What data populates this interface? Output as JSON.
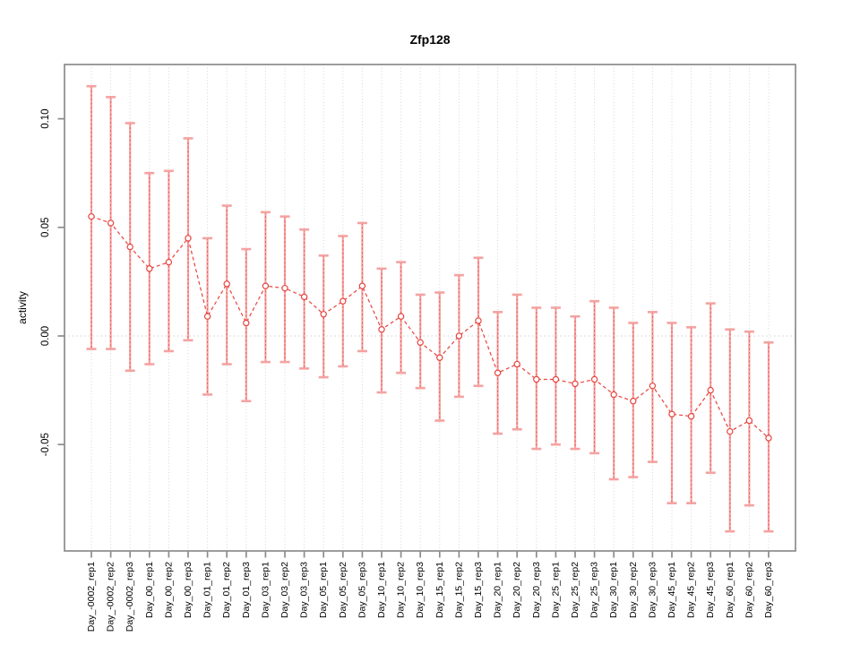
{
  "chart_data": {
    "type": "line",
    "title": "Zfp128",
    "ylabel": "activity",
    "xlabel": "",
    "legend": "none",
    "grid": "vertical-dotted",
    "zero_line": true,
    "ylim": [
      -0.099,
      0.125
    ],
    "yticks": [
      -0.05,
      0.0,
      0.05,
      0.1
    ],
    "ytick_labels": [
      "-0.05",
      "0.00",
      "0.05",
      "0.10"
    ],
    "categories": [
      "Day_-0002_rep1",
      "Day_-0002_rep2",
      "Day_-0002_rep3",
      "Day_00_rep1",
      "Day_00_rep2",
      "Day_00_rep3",
      "Day_01_rep1",
      "Day_01_rep2",
      "Day_01_rep3",
      "Day_03_rep1",
      "Day_03_rep2",
      "Day_03_rep3",
      "Day_05_rep1",
      "Day_05_rep2",
      "Day_05_rep3",
      "Day_10_rep1",
      "Day_10_rep2",
      "Day_10_rep3",
      "Day_15_rep1",
      "Day_15_rep2",
      "Day_15_rep3",
      "Day_20_rep1",
      "Day_20_rep2",
      "Day_20_rep3",
      "Day_25_rep1",
      "Day_25_rep2",
      "Day_25_rep3",
      "Day_30_rep1",
      "Day_30_rep2",
      "Day_30_rep3",
      "Day_45_rep1",
      "Day_45_rep2",
      "Day_45_rep3",
      "Day_60_rep1",
      "Day_60_rep2",
      "Day_60_rep3"
    ],
    "values": [
      0.055,
      0.052,
      0.041,
      0.031,
      0.034,
      0.045,
      0.009,
      0.024,
      0.006,
      0.023,
      0.022,
      0.018,
      0.01,
      0.016,
      0.023,
      0.003,
      0.009,
      -0.003,
      -0.01,
      0.0,
      0.007,
      -0.017,
      -0.013,
      -0.02,
      -0.02,
      -0.022,
      -0.02,
      -0.027,
      -0.03,
      -0.023,
      -0.036,
      -0.037,
      -0.025,
      -0.044,
      -0.039,
      -0.047
    ],
    "err_lo": [
      -0.006,
      -0.006,
      -0.016,
      -0.013,
      -0.007,
      -0.002,
      -0.027,
      -0.013,
      -0.03,
      -0.012,
      -0.012,
      -0.015,
      -0.019,
      -0.014,
      -0.007,
      -0.026,
      -0.017,
      -0.024,
      -0.039,
      -0.028,
      -0.023,
      -0.045,
      -0.043,
      -0.052,
      -0.05,
      -0.052,
      -0.054,
      -0.066,
      -0.065,
      -0.058,
      -0.077,
      -0.077,
      -0.063,
      -0.09,
      -0.078,
      -0.09
    ],
    "err_hi": [
      0.115,
      0.11,
      0.098,
      0.075,
      0.076,
      0.091,
      0.045,
      0.06,
      0.04,
      0.057,
      0.055,
      0.049,
      0.037,
      0.046,
      0.052,
      0.031,
      0.034,
      0.019,
      0.02,
      0.028,
      0.036,
      0.011,
      0.019,
      0.013,
      0.013,
      0.009,
      0.016,
      0.013,
      0.006,
      0.011,
      0.006,
      0.004,
      0.015,
      0.003,
      0.002,
      -0.003
    ],
    "colors": {
      "series": "#e8433e",
      "error_bar": "#f4a3a1",
      "grid": "#d6d6d6",
      "zero_line": "#dadada",
      "frame": "#8c8c8c",
      "text": "#000000",
      "background": "#ffffff"
    }
  }
}
